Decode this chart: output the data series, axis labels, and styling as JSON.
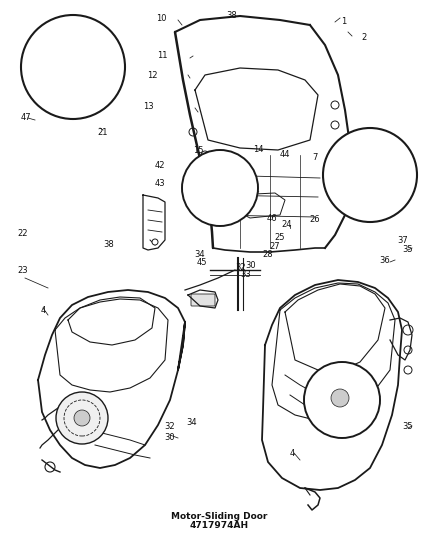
{
  "background_color": "#ffffff",
  "fig_width": 4.38,
  "fig_height": 5.33,
  "dpi": 100,
  "label_fontsize": 6.0,
  "line_color": "#1a1a1a",
  "text_color": "#111111",
  "title_text": "Motor-Sliding Door",
  "part_number": "4717974AH",
  "title_fontsize": 6.5
}
